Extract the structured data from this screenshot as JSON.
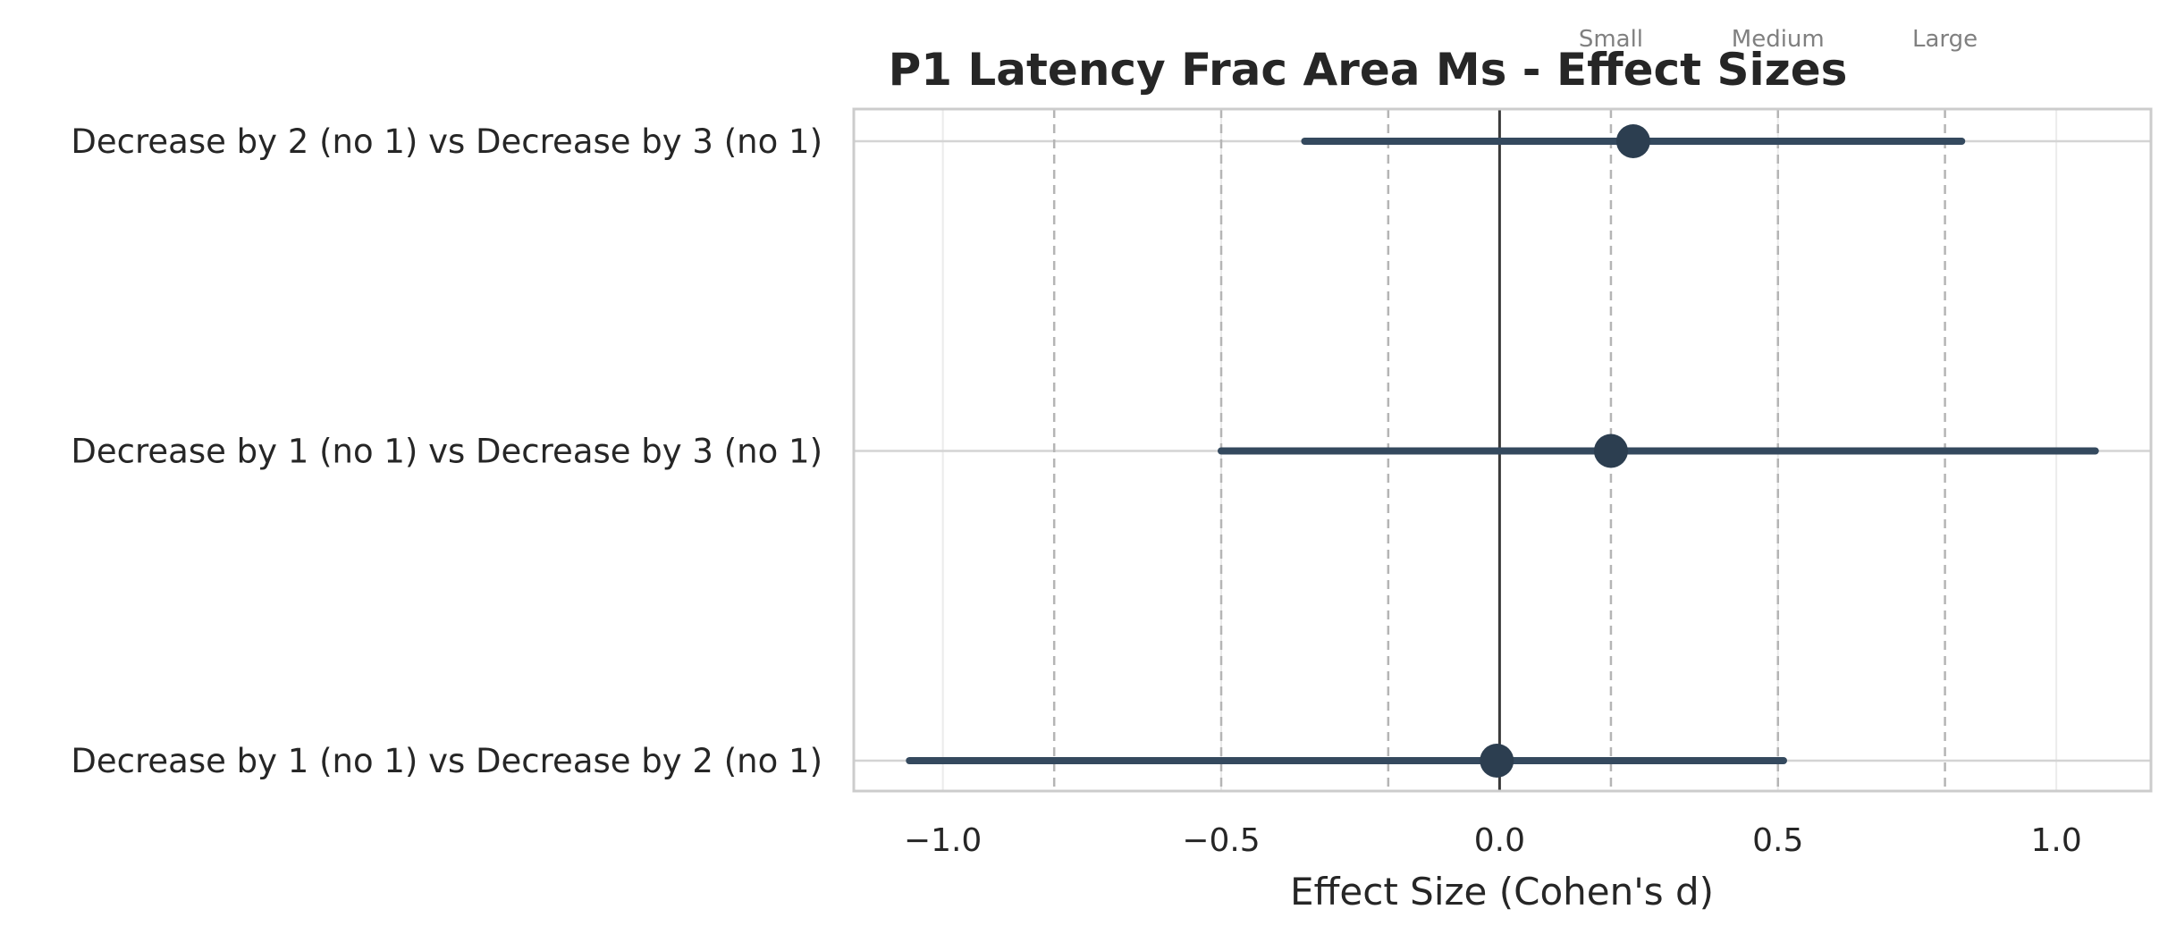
{
  "chart_data": {
    "type": "forest",
    "title": "P1 Latency Frac Area Ms - Effect Sizes",
    "xlabel": "Effect Size (Cohen's d)",
    "ylabel": "",
    "xlim": [
      -1.16,
      1.17
    ],
    "xticks": [
      -1.0,
      -0.5,
      0.0,
      0.5,
      1.0
    ],
    "xtick_labels": [
      "−1.0",
      "−0.5",
      "0.0",
      "0.5",
      "1.0"
    ],
    "grid": true,
    "comparisons": [
      {
        "label": "Decrease by 2 (no 1) vs Decrease by 3 (no 1)",
        "d": 0.24,
        "ci_low": -0.35,
        "ci_high": 0.83
      },
      {
        "label": "Decrease by 1 (no 1) vs Decrease by 3 (no 1)",
        "d": 0.2,
        "ci_low": -0.5,
        "ci_high": 1.07
      },
      {
        "label": "Decrease by 1 (no 1) vs Decrease by 2 (no 1)",
        "d": -0.005,
        "ci_low": -1.06,
        "ci_high": 0.51
      }
    ],
    "reference_line": 0.0,
    "thresholds": [
      {
        "value": -0.8,
        "label": ""
      },
      {
        "value": -0.5,
        "label": ""
      },
      {
        "value": -0.2,
        "label": ""
      },
      {
        "value": 0.2,
        "label": "Small"
      },
      {
        "value": 0.5,
        "label": "Medium"
      },
      {
        "value": 0.8,
        "label": "Large"
      }
    ],
    "colors": {
      "marker": "#2c3e50",
      "ci_line": "#34495e",
      "threshold": "#b5b5b5",
      "reference": "#3a3a3a"
    }
  }
}
